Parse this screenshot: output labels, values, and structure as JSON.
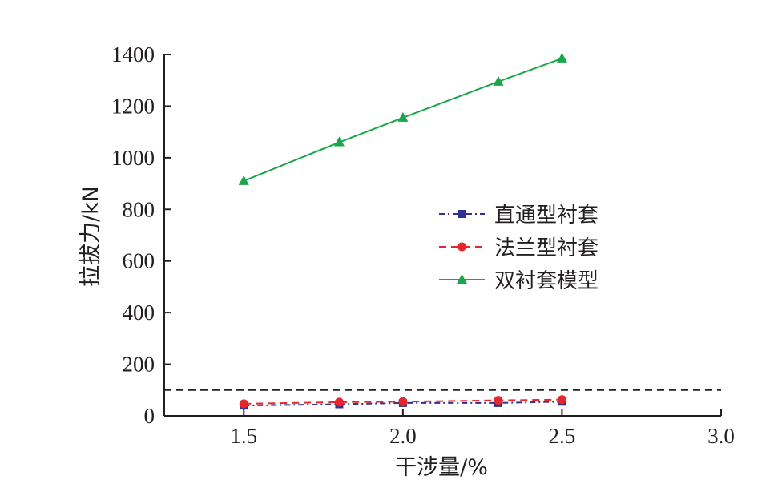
{
  "chart_data": {
    "type": "line",
    "title": "",
    "xlabel": "干涉量/%",
    "ylabel": "拉拔力/kN",
    "xlim": [
      1.25,
      3.0
    ],
    "ylim": [
      0,
      1400
    ],
    "x_ticks": [
      1.5,
      2.0,
      2.5,
      3.0
    ],
    "x_tick_labels": [
      "1.5",
      "2.0",
      "2.5",
      "3.0"
    ],
    "y_ticks": [
      0,
      200,
      400,
      600,
      800,
      1000,
      1200,
      1400
    ],
    "y_tick_labels": [
      "0",
      "200",
      "400",
      "600",
      "800",
      "1000",
      "1200",
      "1400"
    ],
    "x": [
      1.5,
      1.8,
      2.0,
      2.3,
      2.5
    ],
    "series": [
      {
        "name": "直通型衬套",
        "values": [
          40,
          45,
          50,
          50,
          55
        ],
        "color": "#2e3192",
        "marker": "square",
        "line_style": "dash-dot"
      },
      {
        "name": "法兰型衬套",
        "values": [
          47,
          53,
          55,
          60,
          63
        ],
        "color": "#e6262b",
        "marker": "circle",
        "line_style": "dashed"
      },
      {
        "name": "双衬套模型",
        "values": [
          910,
          1060,
          1155,
          1295,
          1385
        ],
        "color": "#1aa64a",
        "marker": "triangle",
        "line_style": "solid"
      }
    ],
    "reference_line": {
      "y": 100,
      "color": "#231f20",
      "line_style": "dashed"
    },
    "grid": false,
    "legend_position": "center-right"
  }
}
